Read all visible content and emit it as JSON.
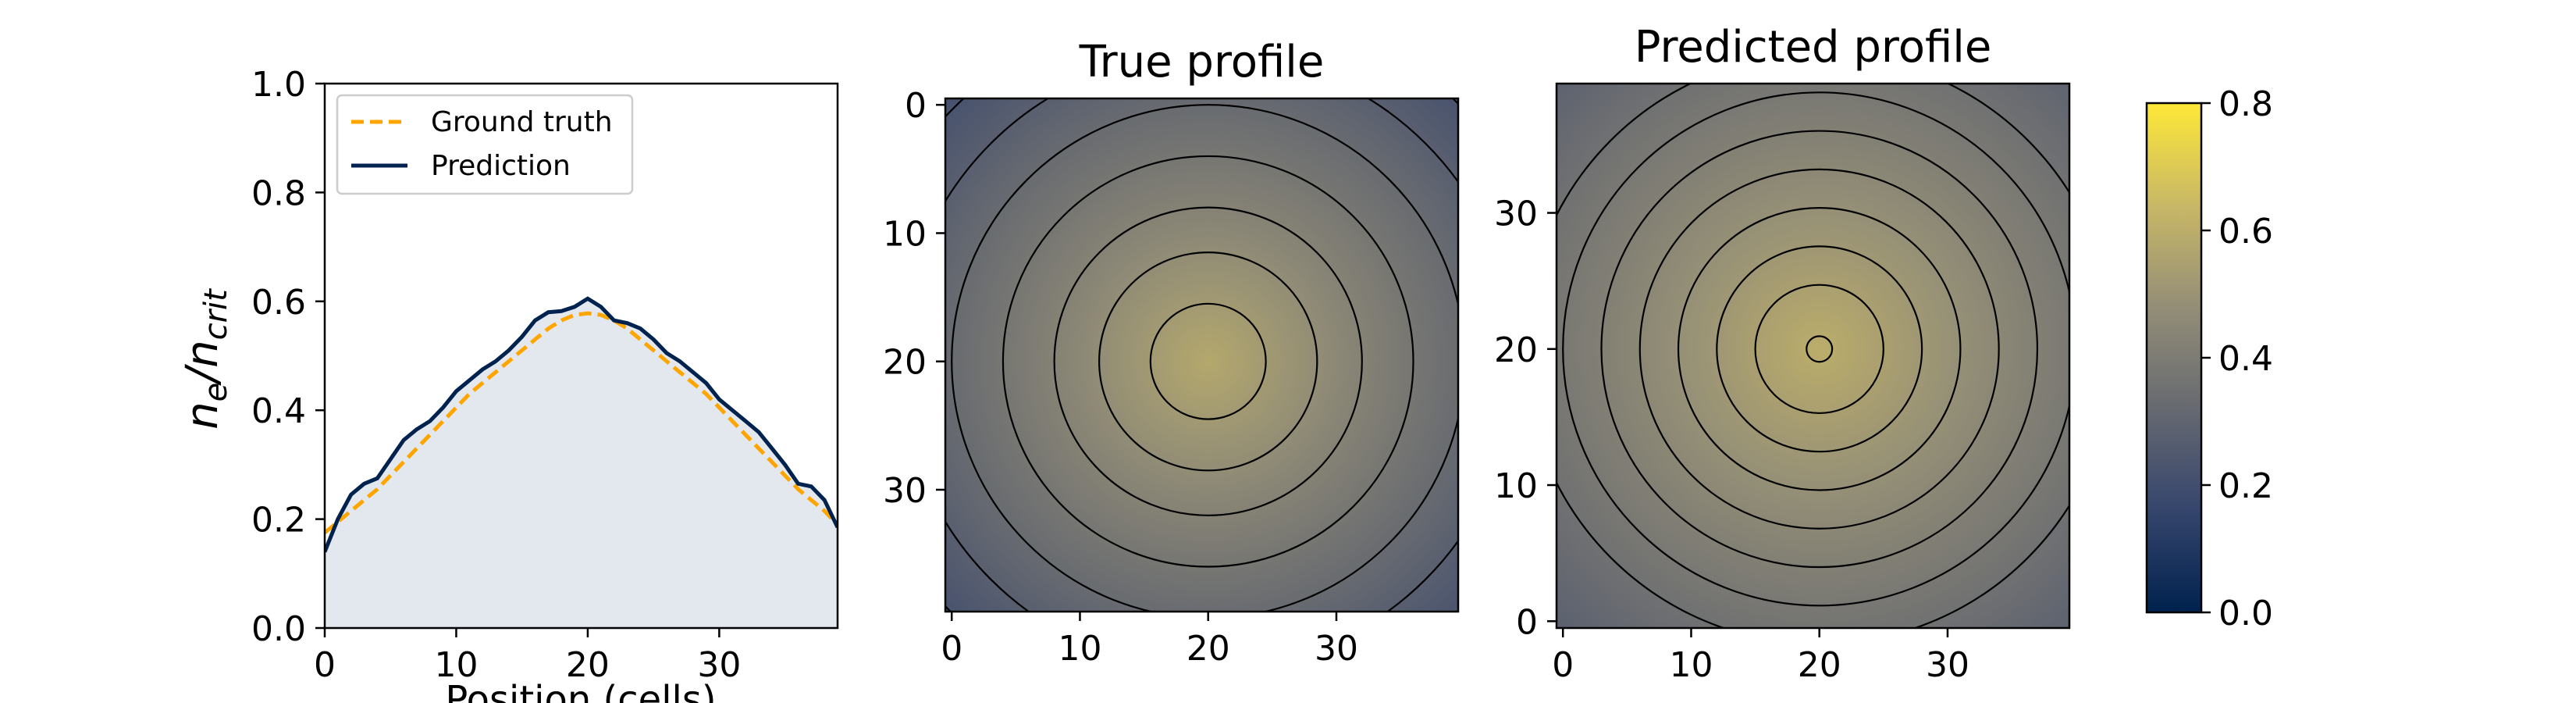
{
  "colors": {
    "ground_truth": "#ffa500",
    "prediction": "#00224e",
    "fill": "#e3e8ef",
    "contour": "#000000",
    "cividis_stops": [
      "#00224e",
      "#35456c",
      "#666970",
      "#948e77",
      "#c8b866",
      "#fee838"
    ]
  },
  "chart_data": [
    {
      "type": "line",
      "title": "",
      "xlabel": "Position (cells)",
      "ylabel_main": "n",
      "ylabel_sub1": "e",
      "ylabel_mid": "/n",
      "ylabel_sub2": "crit",
      "xlim": [
        0,
        39
      ],
      "ylim": [
        0,
        1
      ],
      "xticks": [
        0,
        10,
        20,
        30
      ],
      "yticks": [
        0.0,
        0.2,
        0.4,
        0.6,
        0.8,
        1.0
      ],
      "legend_placement": "top-left",
      "series": [
        {
          "name": "Ground truth",
          "style": "dashed",
          "x": [
            0,
            1,
            2,
            3,
            4,
            5,
            6,
            7,
            8,
            9,
            10,
            11,
            12,
            13,
            14,
            15,
            16,
            17,
            18,
            19,
            20,
            21,
            22,
            23,
            24,
            25,
            26,
            27,
            28,
            29,
            30,
            31,
            32,
            33,
            34,
            35,
            36,
            37,
            38,
            39
          ],
          "values": [
            0.175,
            0.195,
            0.215,
            0.235,
            0.255,
            0.28,
            0.305,
            0.33,
            0.355,
            0.38,
            0.405,
            0.43,
            0.45,
            0.47,
            0.49,
            0.51,
            0.53,
            0.55,
            0.565,
            0.575,
            0.578,
            0.575,
            0.565,
            0.55,
            0.53,
            0.51,
            0.49,
            0.47,
            0.45,
            0.43,
            0.405,
            0.38,
            0.355,
            0.33,
            0.305,
            0.28,
            0.255,
            0.235,
            0.215,
            0.19
          ]
        },
        {
          "name": "Prediction",
          "style": "solid",
          "x": [
            0,
            1,
            2,
            3,
            4,
            5,
            6,
            7,
            8,
            9,
            10,
            11,
            12,
            13,
            14,
            15,
            16,
            17,
            18,
            19,
            20,
            21,
            22,
            23,
            24,
            25,
            26,
            27,
            28,
            29,
            30,
            31,
            32,
            33,
            34,
            35,
            36,
            37,
            38,
            39
          ],
          "values": [
            0.14,
            0.2,
            0.245,
            0.265,
            0.275,
            0.31,
            0.345,
            0.365,
            0.38,
            0.405,
            0.435,
            0.455,
            0.475,
            0.49,
            0.51,
            0.535,
            0.565,
            0.58,
            0.582,
            0.59,
            0.605,
            0.59,
            0.565,
            0.56,
            0.55,
            0.53,
            0.505,
            0.49,
            0.47,
            0.45,
            0.42,
            0.4,
            0.38,
            0.36,
            0.33,
            0.3,
            0.265,
            0.26,
            0.235,
            0.185
          ]
        }
      ]
    },
    {
      "type": "heatmap",
      "title": "True profile",
      "y_direction": "down",
      "xlim": [
        -0.5,
        39.5
      ],
      "ylim": [
        -0.5,
        39.5
      ],
      "xticks": [
        0,
        10,
        20,
        30
      ],
      "yticks": [
        0,
        10,
        20,
        30
      ],
      "center": [
        20,
        20
      ],
      "peak_value": 0.58,
      "edge_value": 0.2,
      "contour_radii": [
        4.5,
        8.5,
        12,
        16,
        20,
        24,
        28
      ]
    },
    {
      "type": "heatmap",
      "title": "Predicted profile",
      "y_direction": "up",
      "xlim": [
        -0.5,
        39.5
      ],
      "ylim": [
        -0.5,
        39.5
      ],
      "xticks": [
        0,
        10,
        20,
        30
      ],
      "yticks": [
        0,
        10,
        20,
        30
      ],
      "center": [
        20,
        20
      ],
      "peak_value": 0.6,
      "edge_value": 0.28,
      "contour_radii": [
        1,
        5,
        8,
        11,
        14,
        17,
        20,
        23
      ]
    },
    {
      "type": "colorbar",
      "colormap": "cividis",
      "range": [
        0,
        0.8
      ],
      "ticks": [
        "0.0",
        "0.2",
        "0.4",
        "0.6",
        "0.8"
      ]
    }
  ]
}
